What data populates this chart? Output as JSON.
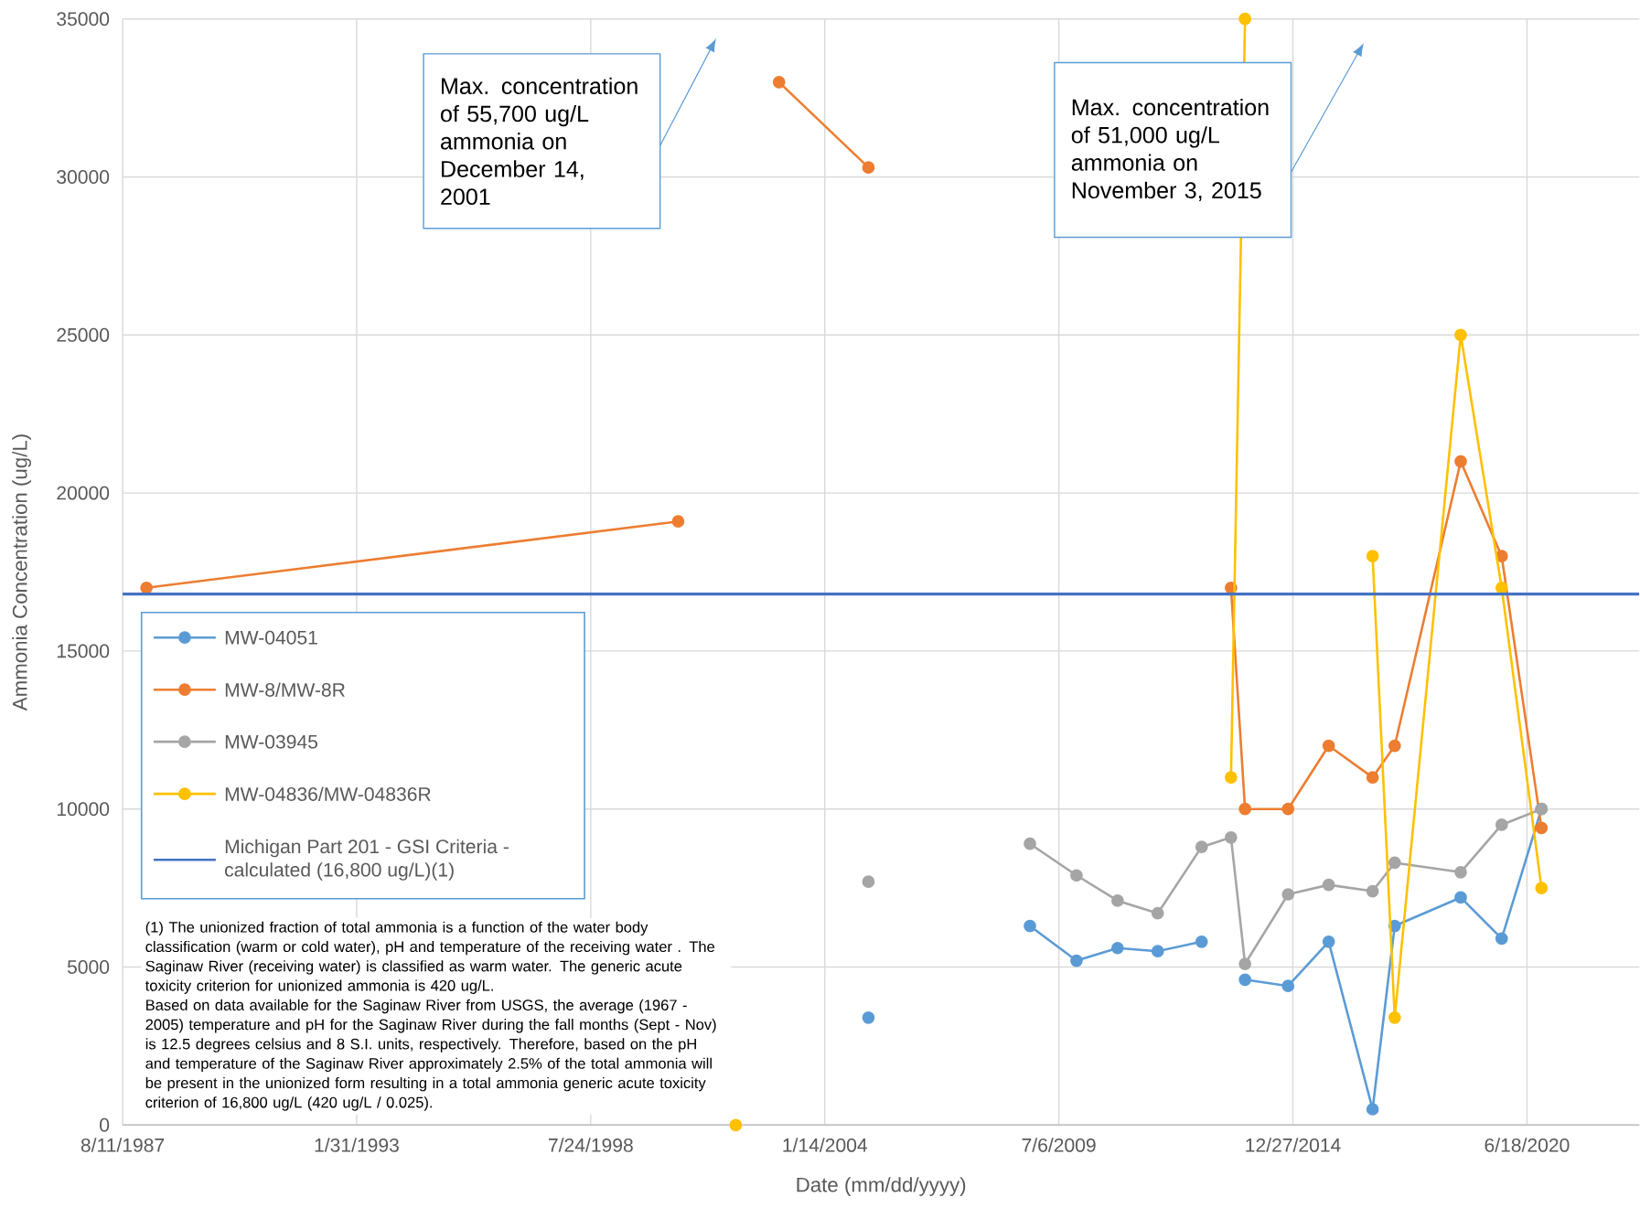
{
  "chart_data": {
    "type": "line",
    "xlabel": "Date (mm/dd/yyyy)",
    "ylabel": "Ammonia Concentration (ug/L)",
    "xlim": [
      "1987-08-11",
      "2023-02-03"
    ],
    "ylim": [
      0,
      35000
    ],
    "xticks": [
      {
        "value": "1987-08-11",
        "label": "8/11/1987"
      },
      {
        "value": "1993-01-31",
        "label": "1/31/1993"
      },
      {
        "value": "1998-07-24",
        "label": "7/24/1998"
      },
      {
        "value": "2004-01-14",
        "label": "1/14/2004"
      },
      {
        "value": "2009-07-06",
        "label": "7/6/2009"
      },
      {
        "value": "2014-12-27",
        "label": "12/27/2014"
      },
      {
        "value": "2020-06-18",
        "label": "6/18/2020"
      }
    ],
    "yticks": [
      0,
      5000,
      10000,
      15000,
      20000,
      25000,
      30000,
      35000
    ],
    "grid": true,
    "legend": "left",
    "marker": "circle",
    "series": [
      {
        "name": "MW-04051",
        "color": "#5b9bd5",
        "x": [
          "2005-01-21",
          "2006-12-01",
          "2008-11-01",
          "2009-12-04",
          "2010-11-20",
          "2011-10-29",
          "2012-11-07",
          "2013-07-16",
          "2013-11-13",
          "2014-11-16",
          "2015-10-29",
          "2016-11-07",
          "2017-05-15",
          "2018-11-30",
          "2019-11-15",
          "2020-10-20"
        ],
        "values": [
          3400,
          null,
          6300,
          5200,
          5600,
          5500,
          5800,
          null,
          4600,
          4400,
          5800,
          500,
          6300,
          7200,
          5900,
          10000
        ]
      },
      {
        "name": "MW-8/MW-8R",
        "color": "#ed7d31",
        "x": [
          "1988-03-02",
          "2000-08-09",
          "2001-12-14",
          "2002-12-19",
          "2005-01-21",
          "2006-12-01",
          "2013-07-16",
          "2013-11-13",
          "2014-11-16",
          "2015-10-29",
          "2016-11-07",
          "2017-05-15",
          "2018-11-30",
          "2019-11-15",
          "2020-10-20"
        ],
        "values": [
          17000,
          19100,
          null,
          33000,
          30300,
          null,
          17000,
          10000,
          10000,
          12000,
          11000,
          12000,
          21000,
          18000,
          9400
        ]
      },
      {
        "name": "MW-03945",
        "color": "#a5a5a5",
        "x": [
          "2005-01-21",
          "2006-12-01",
          "2008-11-01",
          "2009-12-04",
          "2010-11-20",
          "2011-10-29",
          "2012-11-07",
          "2013-07-16",
          "2013-11-13",
          "2014-11-16",
          "2015-10-29",
          "2016-11-07",
          "2017-05-15",
          "2018-11-30",
          "2019-11-15",
          "2020-10-20"
        ],
        "values": [
          7700,
          null,
          8900,
          7900,
          7100,
          6700,
          8800,
          9100,
          5100,
          7300,
          7600,
          7400,
          8300,
          8000,
          9500,
          10000
        ]
      },
      {
        "name": "MW-04836/MW-04836R",
        "color": "#ffc000",
        "x": [
          "2001-12-14",
          "2006-12-01",
          "2013-07-16",
          "2013-11-13",
          "2015-11-03",
          "2016-11-07",
          "2017-05-15",
          "2018-11-30",
          "2019-11-15",
          "2020-10-20"
        ],
        "values": [
          0,
          null,
          11000,
          35000,
          null,
          18000,
          3400,
          25000,
          17000,
          7500
        ]
      }
    ],
    "ref_lines": [
      {
        "axis": "y",
        "value": 16800,
        "label": "Michigan Part 201 - GSI Criteria - calculated (16,800 ug/L)(1)",
        "color": "#4472c4"
      }
    ],
    "annotations": [
      "Max. concentration of 55,700 ug/L ammonia on December 14, 2001",
      "Max. concentration of 51,000 ug/L ammonia on November 3, 2015",
      "(1) The unionized fraction of total ammonia is a function of the water body classification (warm or cold water), pH and temperature of the receiving water . The Saginaw River (receiving water) is classified as warm water. The generic acute toxicity criterion for unionized ammonia is 420 ug/L.",
      "Based on data available for the Saginaw River from USGS, the average (1967 - 2005) temperature and pH for the Saginaw River during the fall months (Sept - Nov) is 12.5 degrees celsius and 8 S.I. units, respectively. Therefore, based on the pH and temperature of the Saginaw River approximately 2.5% of the total ammonia will be present in the unionized form resulting in a total ammonia generic acute toxicity criterion of 16,800 ug/L (420 ug/L / 0.025)."
    ]
  }
}
